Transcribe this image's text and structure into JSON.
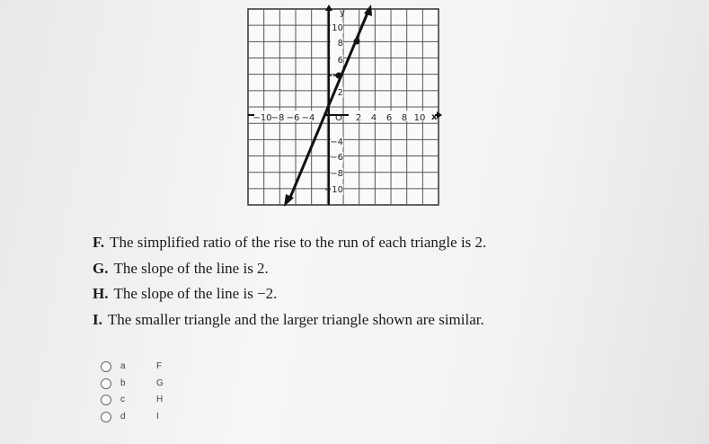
{
  "graph": {
    "y_label": "y",
    "x_label": "x",
    "origin": "O",
    "x_tick_labels": [
      "−10",
      "−8",
      "−6",
      "−4",
      "2",
      "4",
      "6",
      "8",
      "10"
    ],
    "y_tick_labels": [
      "10",
      "8",
      "6",
      "2",
      "−4",
      "−6",
      "−8",
      "−10"
    ]
  },
  "statements": [
    {
      "letter": "F.",
      "text": "The simplified ratio of the rise to the run of each triangle is 2."
    },
    {
      "letter": "G.",
      "text": "The slope of the line is 2."
    },
    {
      "letter": "H.",
      "text": "The slope of the line is −2."
    },
    {
      "letter": "I.",
      "text": "The smaller triangle and the larger triangle shown are similar."
    }
  ],
  "options": [
    {
      "label": "a",
      "value": "F"
    },
    {
      "label": "b",
      "value": "G"
    },
    {
      "label": "c",
      "value": "H"
    },
    {
      "label": "d",
      "value": "I"
    }
  ]
}
